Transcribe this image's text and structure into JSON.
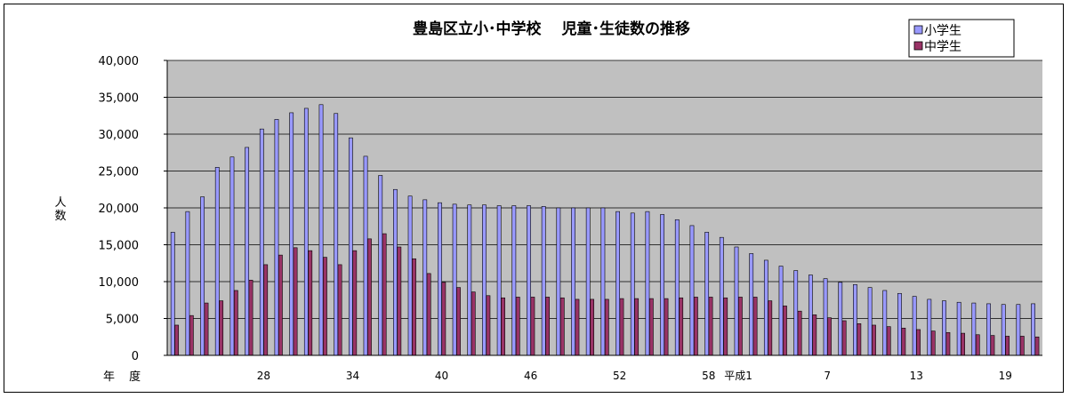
{
  "chart_data": {
    "type": "bar",
    "title": "豊島区立小･中学校　 児童･生徒数の推移",
    "ylabel": "人数",
    "xlabel": "年 度",
    "ylim": [
      0,
      40000
    ],
    "y_ticks": [
      "0",
      "5,000",
      "10,000",
      "15,000",
      "20,000",
      "25,000",
      "30,000",
      "35,000",
      "40,000"
    ],
    "y_tick_values": [
      0,
      5000,
      10000,
      15000,
      20000,
      25000,
      30000,
      35000,
      40000
    ],
    "grid": true,
    "legend_position": "top-right",
    "x_tick_labels": [
      {
        "index": 6,
        "label": "28"
      },
      {
        "index": 12,
        "label": "34"
      },
      {
        "index": 18,
        "label": "40"
      },
      {
        "index": 24,
        "label": "46"
      },
      {
        "index": 30,
        "label": "52"
      },
      {
        "index": 36,
        "label": "58"
      },
      {
        "index": 38,
        "label": "平成1"
      },
      {
        "index": 44,
        "label": "7"
      },
      {
        "index": 50,
        "label": "13"
      },
      {
        "index": 56,
        "label": "19"
      }
    ],
    "categories_count": 59,
    "series": [
      {
        "name": "小学生",
        "color": "#9999ff",
        "values": [
          16700,
          19500,
          21500,
          25500,
          26900,
          28200,
          30700,
          32000,
          32900,
          33500,
          34000,
          32800,
          29500,
          27000,
          24400,
          22500,
          21600,
          21100,
          20700,
          20500,
          20400,
          20400,
          20300,
          20300,
          20300,
          20200,
          20000,
          20000,
          20000,
          20000,
          19500,
          19300,
          19500,
          19100,
          18400,
          17600,
          16700,
          16000,
          14700,
          13800,
          12900,
          12100,
          11500,
          10900,
          10400,
          9900,
          9600,
          9200,
          8800,
          8400,
          8000,
          7600,
          7400,
          7200,
          7100,
          7000,
          6900,
          6900,
          7000
        ]
      },
      {
        "name": "中学生",
        "color": "#993366",
        "values": [
          4100,
          5400,
          7100,
          7400,
          8800,
          10200,
          12300,
          13600,
          14600,
          14200,
          13300,
          12300,
          14200,
          15800,
          16500,
          14700,
          13100,
          11100,
          9900,
          9200,
          8600,
          8100,
          7800,
          7900,
          7900,
          7900,
          7800,
          7600,
          7600,
          7600,
          7700,
          7700,
          7700,
          7700,
          7800,
          7900,
          7900,
          7800,
          7900,
          7900,
          7400,
          6700,
          6000,
          5500,
          5100,
          4700,
          4300,
          4100,
          3900,
          3700,
          3500,
          3300,
          3100,
          3000,
          2800,
          2700,
          2600,
          2600,
          2500
        ]
      }
    ]
  }
}
